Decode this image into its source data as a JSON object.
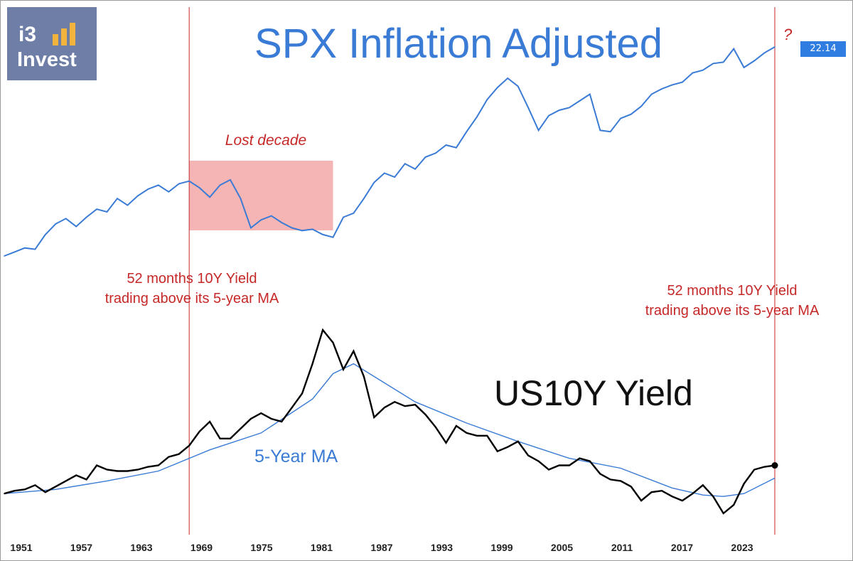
{
  "logo": {
    "line1": "i3",
    "line2": "Invest",
    "bar_color": "#f2b33d",
    "bg_color": "#6e7ea6"
  },
  "colors": {
    "spx_line": "#3a7bd5",
    "yield_line": "#000000",
    "ma_line": "#3a7bd5",
    "annotation": "#c62828",
    "lost_decade_fill": "#f4a3a3"
  },
  "annotations": {
    "lost_decade": "Lost decade",
    "left_note_line1": "52 months 10Y Yield",
    "left_note_line2": "trading above its 5-year MA",
    "right_note_line1": "52 months 10Y Yield",
    "right_note_line2": "trading above its 5-year MA",
    "question_mark": "?",
    "price_badge": "22.14",
    "yield_label": "US10Y Yield",
    "ma_label": "5-Year MA"
  },
  "chart_data": [
    {
      "type": "line",
      "title": "SPX Inflation Adjusted",
      "xlabel": "",
      "ylabel": "",
      "x_ticks": [
        "1951",
        "1957",
        "1963",
        "1969",
        "1975",
        "1981",
        "1987",
        "1993",
        "1999",
        "2005",
        "2011",
        "2017",
        "2023"
      ],
      "xlim": [
        1950,
        2026
      ],
      "grid": false,
      "last_value": 22.14,
      "lost_decade_range": [
        1968,
        1982
      ],
      "vertical_markers": [
        1968,
        2025
      ],
      "series": [
        {
          "name": "",
          "x": [
            1950,
            1951,
            1952,
            1953,
            1954,
            1955,
            1956,
            1957,
            1958,
            1959,
            1960,
            1961,
            1962,
            1963,
            1964,
            1965,
            1966,
            1967,
            1968,
            1969,
            1970,
            1971,
            1972,
            1973,
            1974,
            1975,
            1976,
            1977,
            1978,
            1979,
            1980,
            1981,
            1982,
            1983,
            1984,
            1985,
            1986,
            1987,
            1988,
            1989,
            1990,
            1991,
            1992,
            1993,
            1994,
            1995,
            1996,
            1997,
            1998,
            1999,
            2000,
            2001,
            2002,
            2003,
            2004,
            2005,
            2006,
            2007,
            2008,
            2009,
            2010,
            2011,
            2012,
            2013,
            2014,
            2015,
            2016,
            2017,
            2018,
            2019,
            2020,
            2021,
            2022,
            2023,
            2024,
            2025
          ],
          "values": [
            6.5,
            6.8,
            7.1,
            7.0,
            8.1,
            8.9,
            9.3,
            8.7,
            9.4,
            10.0,
            9.8,
            10.8,
            10.3,
            11.0,
            11.5,
            11.8,
            11.3,
            11.9,
            12.1,
            11.6,
            10.9,
            11.8,
            12.2,
            10.8,
            8.6,
            9.2,
            9.5,
            9.0,
            8.6,
            8.4,
            8.5,
            8.1,
            7.9,
            9.4,
            9.7,
            10.8,
            12.0,
            12.7,
            12.4,
            13.4,
            13.0,
            13.9,
            14.2,
            14.8,
            14.6,
            15.8,
            16.9,
            18.2,
            19.1,
            19.8,
            19.2,
            17.6,
            15.9,
            17.0,
            17.4,
            17.6,
            18.1,
            18.6,
            15.9,
            15.8,
            16.8,
            17.1,
            17.7,
            18.6,
            19.0,
            19.3,
            19.5,
            20.2,
            20.4,
            20.9,
            21.0,
            22.0,
            20.6,
            21.1,
            21.7,
            22.14
          ]
        }
      ]
    },
    {
      "type": "line",
      "title": "",
      "xlabel": "",
      "ylabel": "",
      "x_ticks": [
        "1951",
        "1957",
        "1963",
        "1969",
        "1975",
        "1981",
        "1987",
        "1993",
        "1999",
        "2005",
        "2011",
        "2017",
        "2023"
      ],
      "xlim": [
        1950,
        2026
      ],
      "ylim": [
        0,
        16
      ],
      "grid": false,
      "series": [
        {
          "name": "US10Y Yield",
          "x": [
            1950,
            1951,
            1952,
            1953,
            1954,
            1955,
            1956,
            1957,
            1958,
            1959,
            1960,
            1961,
            1962,
            1963,
            1964,
            1965,
            1966,
            1967,
            1968,
            1969,
            1970,
            1971,
            1972,
            1973,
            1974,
            1975,
            1976,
            1977,
            1978,
            1979,
            1980,
            1981,
            1982,
            1983,
            1984,
            1985,
            1986,
            1987,
            1988,
            1989,
            1990,
            1991,
            1992,
            1993,
            1994,
            1995,
            1996,
            1997,
            1998,
            1999,
            2000,
            2001,
            2002,
            2003,
            2004,
            2005,
            2006,
            2007,
            2008,
            2009,
            2010,
            2011,
            2012,
            2013,
            2014,
            2015,
            2016,
            2017,
            2018,
            2019,
            2020,
            2021,
            2022,
            2023,
            2024,
            2025
          ],
          "values": [
            2.3,
            2.5,
            2.6,
            2.9,
            2.4,
            2.8,
            3.2,
            3.6,
            3.3,
            4.3,
            4.0,
            3.9,
            3.9,
            4.0,
            4.2,
            4.3,
            4.9,
            5.1,
            5.7,
            6.7,
            7.4,
            6.2,
            6.2,
            6.9,
            7.6,
            8.0,
            7.6,
            7.4,
            8.4,
            9.4,
            11.5,
            13.9,
            13.0,
            11.1,
            12.4,
            10.6,
            7.7,
            8.4,
            8.8,
            8.5,
            8.6,
            7.9,
            7.0,
            5.9,
            7.1,
            6.6,
            6.4,
            6.4,
            5.3,
            5.6,
            6.0,
            5.0,
            4.6,
            4.0,
            4.3,
            4.3,
            4.8,
            4.6,
            3.7,
            3.3,
            3.2,
            2.8,
            1.8,
            2.4,
            2.5,
            2.1,
            1.8,
            2.3,
            2.9,
            2.1,
            0.9,
            1.5,
            3.0,
            4.0,
            4.2,
            4.3
          ]
        },
        {
          "name": "5-Year MA",
          "x": [
            1950,
            1955,
            1960,
            1965,
            1970,
            1975,
            1980,
            1982,
            1984,
            1986,
            1990,
            1995,
            2000,
            2005,
            2010,
            2015,
            2018,
            2020,
            2022,
            2025
          ],
          "values": [
            2.3,
            2.6,
            3.2,
            3.9,
            5.4,
            6.6,
            9.0,
            10.8,
            11.5,
            10.6,
            8.8,
            7.3,
            6.0,
            4.8,
            4.1,
            2.7,
            2.2,
            2.1,
            2.3,
            3.4
          ]
        }
      ]
    }
  ]
}
